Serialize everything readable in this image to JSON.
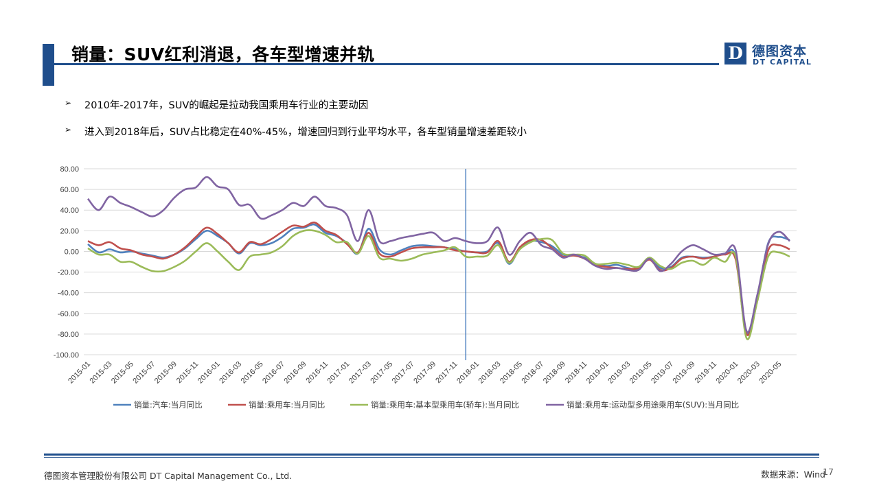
{
  "header": {
    "title": "销量：SUV红利消退，各车型增速并轨",
    "logo_mark": "D",
    "logo_cn": "德图资本",
    "logo_en": "DT CAPITAL"
  },
  "bullets": [
    {
      "text": "2010年-2017年，SUV的崛起是拉动我国乘用车行业的主要动因"
    },
    {
      "text": "进入到2018年后，SUV占比稳定在40%-45%，增速回归到行业平均水平，各车型销量增速差距较小"
    }
  ],
  "bullet_mark": "➢",
  "footer": {
    "company": "德图资本管理股份有限公司  DT Capital Management  Co., Ltd.",
    "source": "数据来源：Wind",
    "page_number": "17"
  },
  "colors": {
    "brand": "#1f4e8c",
    "series": [
      "#4f81bd",
      "#c0504d",
      "#9bbb59",
      "#8064a2"
    ]
  },
  "chart_data": {
    "type": "line",
    "ylim": [
      -100,
      80
    ],
    "y_ticks": [
      "80.00",
      "60.00",
      "40.00",
      "20.00",
      "0.00",
      "-20.00",
      "-40.00",
      "-60.00",
      "-80.00",
      "-100.00"
    ],
    "x_tick_labels": [
      "2015-01",
      "2015-03",
      "2015-05",
      "2015-07",
      "2015-09",
      "2015-11",
      "2016-01",
      "2016-03",
      "2016-05",
      "2016-07",
      "2016-09",
      "2016-11",
      "2017-01",
      "2017-03",
      "2017-05",
      "2017-07",
      "2017-09",
      "2017-11",
      "2018-01",
      "2018-03",
      "2018-05",
      "2018-07",
      "2018-09",
      "2018-11",
      "2019-01",
      "2019-03",
      "2019-05",
      "2019-07",
      "2019-09",
      "2019-11",
      "2020-01",
      "2020-03",
      "2020-05"
    ],
    "x_start": "2015-01",
    "x_end": "2020-06",
    "vertical_marker": "2017-12",
    "grid": "horizontal",
    "legend_position": "bottom",
    "series": [
      {
        "name": "销量:汽车:当月同比",
        "values": [
          7,
          -1,
          2,
          -1,
          0,
          -2,
          -4,
          -6,
          -3,
          3,
          12,
          20,
          15,
          8,
          -2,
          8,
          6,
          8,
          14,
          22,
          23,
          26,
          18,
          15,
          8,
          -2,
          22,
          2,
          -3,
          1,
          5,
          6,
          5,
          4,
          2,
          0,
          -1,
          0,
          8,
          -12,
          3,
          10,
          9,
          5,
          -3,
          -4,
          -6,
          -12,
          -14,
          -13,
          -16,
          -17,
          -6,
          -16,
          -15,
          -6,
          -5,
          -6,
          -5,
          -2,
          -5,
          -79,
          -45,
          8,
          14,
          11
        ]
      },
      {
        "name": "销量:乘用车:当月同比",
        "values": [
          10,
          6,
          9,
          3,
          1,
          -3,
          -5,
          -7,
          -3,
          4,
          14,
          23,
          17,
          8,
          -1,
          9,
          7,
          12,
          19,
          25,
          24,
          28,
          20,
          16,
          7,
          -1,
          18,
          -2,
          -5,
          -1,
          3,
          4,
          4,
          4,
          1,
          0,
          -1,
          -1,
          10,
          -10,
          4,
          11,
          11,
          3,
          -5,
          -4,
          -7,
          -13,
          -15,
          -16,
          -17,
          -16,
          -8,
          -18,
          -16,
          -7,
          -5,
          -7,
          -5,
          -3,
          -8,
          -80,
          -48,
          1,
          6,
          2
        ]
      },
      {
        "name": "销量:乘用车:基本型乘用车(轿车):当月同比",
        "values": [
          3,
          -3,
          -3,
          -10,
          -10,
          -15,
          -19,
          -19,
          -15,
          -9,
          0,
          8,
          0,
          -10,
          -18,
          -5,
          -3,
          -1,
          5,
          15,
          20,
          20,
          16,
          9,
          9,
          -2,
          15,
          -6,
          -7,
          -9,
          -7,
          -3,
          -1,
          1,
          4,
          -5,
          -5,
          -4,
          6,
          -11,
          2,
          9,
          12,
          11,
          -2,
          -3,
          -4,
          -12,
          -12,
          -11,
          -13,
          -15,
          -6,
          -14,
          -17,
          -11,
          -9,
          -13,
          -6,
          -10,
          -5,
          -84,
          -48,
          -5,
          -1,
          -5
        ]
      },
      {
        "name": "销量:乘用车:运动型多用途乘用车(SUV):当月同比",
        "values": [
          51,
          40,
          53,
          47,
          43,
          38,
          34,
          40,
          52,
          60,
          62,
          72,
          63,
          60,
          45,
          45,
          32,
          35,
          40,
          47,
          44,
          53,
          44,
          42,
          35,
          10,
          40,
          10,
          10,
          13,
          15,
          17,
          18,
          10,
          13,
          10,
          8,
          10,
          23,
          -3,
          10,
          18,
          6,
          2,
          -6,
          -3,
          -7,
          -14,
          -17,
          -16,
          -18,
          -18,
          -7,
          -19,
          -12,
          0,
          6,
          2,
          -3,
          -2,
          1,
          -77,
          -42,
          7,
          19,
          10
        ]
      }
    ]
  }
}
